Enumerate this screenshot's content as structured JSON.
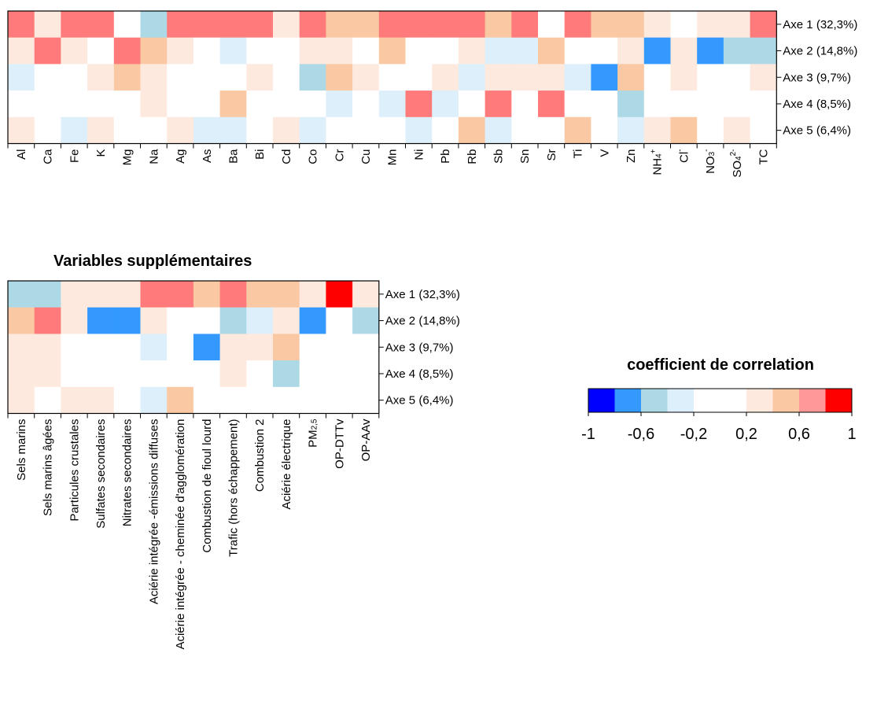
{
  "colors": {
    "-0.9": "#0000FF",
    "-0.7": "#3399FF",
    "-0.5": "#ADD8E6",
    "-0.3": "#DDEFFB",
    "0": "#FFFFFF",
    "0.3": "#FDE9DD",
    "0.5": "#FAC8A2",
    "0.7": "#FF7B7B",
    "0.9": "#FF0000"
  },
  "chart_data": [
    {
      "type": "heatmap",
      "title": "",
      "rows": [
        "Axe 1 (32,3%)",
        "Axe 2 (14,8%)",
        "Axe 3 (9,7%)",
        "Axe 4 (8,5%)",
        "Axe 5 (6,4%)"
      ],
      "columns": [
        "Al",
        "Ca",
        "Fe",
        "K",
        "Mg",
        "Na",
        "Ag",
        "As",
        "Ba",
        "Bi",
        "Cd",
        "Co",
        "Cr",
        "Cu",
        "Mn",
        "Ni",
        "Pb",
        "Rb",
        "Sb",
        "Sn",
        "Sr",
        "Ti",
        "V",
        "Zn",
        "NH4+",
        "Cl-",
        "NO3-",
        "SO42-",
        "TC"
      ],
      "values": [
        [
          0.7,
          0.3,
          0.7,
          0.7,
          0,
          -0.5,
          0.7,
          0.7,
          0.7,
          0.7,
          0.3,
          0.7,
          0.5,
          0.5,
          0.7,
          0.7,
          0.7,
          0.7,
          0.5,
          0.7,
          0,
          0.7,
          0.5,
          0.5,
          0.3,
          0,
          0.3,
          0.3,
          0.7
        ],
        [
          0.3,
          0.7,
          0.3,
          0,
          0.7,
          0.5,
          0.3,
          0,
          -0.3,
          0,
          0,
          0.3,
          0.3,
          0,
          0.5,
          0,
          0,
          0.3,
          -0.3,
          -0.3,
          0.5,
          0,
          0,
          0.3,
          -0.7,
          0.3,
          -0.7,
          -0.5,
          -0.5
        ],
        [
          -0.3,
          0,
          0,
          0.3,
          0.5,
          0.3,
          0,
          0,
          0,
          0.3,
          0,
          -0.5,
          0.5,
          0.3,
          0,
          0,
          0.3,
          -0.3,
          0.3,
          0.3,
          0.3,
          -0.3,
          -0.7,
          0.5,
          0,
          0.3,
          0,
          0,
          0.3
        ],
        [
          0,
          0,
          0,
          0,
          0,
          0.3,
          0,
          0,
          0.5,
          0,
          0,
          0,
          -0.3,
          0,
          -0.3,
          0.7,
          -0.3,
          0,
          0.7,
          0,
          0.7,
          0,
          0,
          -0.5,
          0,
          0,
          0,
          0,
          0
        ],
        [
          0.3,
          0,
          -0.3,
          0.3,
          0,
          0,
          0.3,
          -0.3,
          -0.3,
          0,
          0.3,
          -0.3,
          0,
          0,
          0,
          -0.3,
          0,
          0.5,
          -0.3,
          0,
          0,
          0.5,
          0,
          -0.3,
          0.3,
          0.5,
          0,
          0.3,
          0
        ]
      ]
    },
    {
      "type": "heatmap",
      "title": "Variables supplémentaires",
      "rows": [
        "Axe 1 (32,3%)",
        "Axe 2 (14,8%)",
        "Axe 3 (9,7%)",
        "Axe 4 (8,5%)",
        "Axe 5 (6,4%)"
      ],
      "columns": [
        "Sels marins",
        "Sels marins âgées",
        "Particules crustales",
        "Sulfates secondaires",
        "Nitrates secondaires",
        "Aciérie intégrée -émissions diffuses",
        "Aciérie intégrée - cheminée d'agglomération",
        "Combustion de fioul lourd",
        "Trafic (hors échappement)",
        "Combustion 2",
        "Aciérie électrique",
        "PM2,5",
        "OP-DTTv",
        "OP-AAv"
      ],
      "values": [
        [
          -0.5,
          -0.5,
          0.3,
          0.3,
          0.3,
          0.7,
          0.7,
          0.5,
          0.7,
          0.5,
          0.5,
          0.3,
          0.9,
          0.3
        ],
        [
          0.5,
          0.7,
          0.3,
          -0.7,
          -0.7,
          0.3,
          0,
          0,
          -0.5,
          -0.3,
          0.3,
          -0.7,
          0,
          -0.5
        ],
        [
          0.3,
          0.3,
          0,
          0,
          0,
          -0.3,
          0,
          -0.7,
          0.3,
          0.3,
          0.5,
          0,
          0,
          0
        ],
        [
          0.3,
          0.3,
          0,
          0,
          0,
          0,
          0,
          0,
          0.3,
          0,
          -0.5,
          0,
          0,
          0
        ],
        [
          0.3,
          0,
          0.3,
          0.3,
          0,
          -0.3,
          0.5,
          0,
          0,
          0,
          0,
          0,
          0,
          0
        ]
      ]
    }
  ],
  "legend": {
    "title": "coefficient de correlation",
    "ticks": [
      "-1",
      "-0,6",
      "-0,2",
      "0,2",
      "0,6",
      "1"
    ],
    "colors": [
      "#0000FF",
      "#3399FF",
      "#ADD8E6",
      "#DDEFFB",
      "#FFFFFF",
      "#FFFFFF",
      "#FDE9DD",
      "#FAC8A2",
      "#FF9999",
      "#FF0000"
    ]
  }
}
